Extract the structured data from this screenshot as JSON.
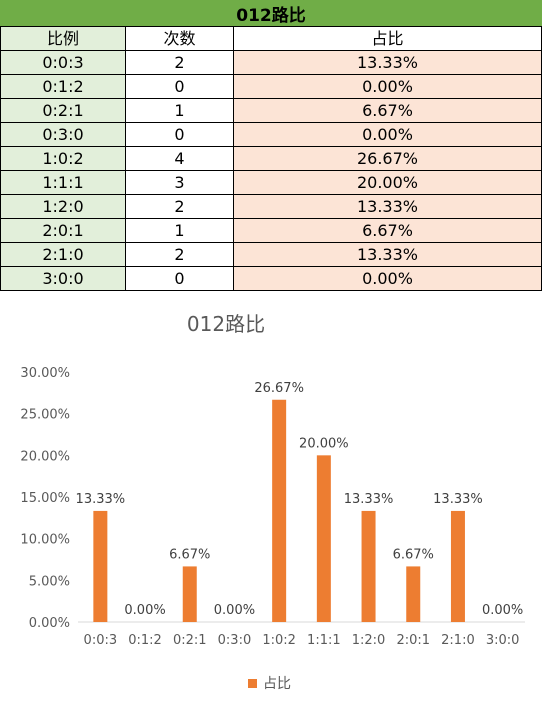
{
  "table": {
    "title": "012路比",
    "headers": [
      "比例",
      "次数",
      "占比"
    ],
    "rows": [
      [
        "0:0:3",
        "2",
        "13.33%"
      ],
      [
        "0:1:2",
        "0",
        "0.00%"
      ],
      [
        "0:2:1",
        "1",
        "6.67%"
      ],
      [
        "0:3:0",
        "0",
        "0.00%"
      ],
      [
        "1:0:2",
        "4",
        "26.67%"
      ],
      [
        "1:1:1",
        "3",
        "20.00%"
      ],
      [
        "1:2:0",
        "2",
        "13.33%"
      ],
      [
        "2:0:1",
        "1",
        "6.67%"
      ],
      [
        "2:1:0",
        "2",
        "13.33%"
      ],
      [
        "3:0:0",
        "0",
        "0.00%"
      ]
    ]
  },
  "chart_data": {
    "type": "bar",
    "title": "012路比",
    "categories": [
      "0:0:3",
      "0:1:2",
      "0:2:1",
      "0:3:0",
      "1:0:2",
      "1:1:1",
      "1:2:0",
      "2:0:1",
      "2:1:0",
      "3:0:0"
    ],
    "series": [
      {
        "name": "占比",
        "values": [
          13.33,
          0.0,
          6.67,
          0.0,
          26.67,
          20.0,
          13.33,
          6.67,
          13.33,
          0.0
        ],
        "labels": [
          "13.33%",
          "0.00%",
          "6.67%",
          "0.00%",
          "26.67%",
          "20.00%",
          "13.33%",
          "6.67%",
          "13.33%",
          "0.00%"
        ],
        "color": "#ed7d31"
      }
    ],
    "yticks": [
      "0.00%",
      "5.00%",
      "10.00%",
      "15.00%",
      "20.00%",
      "25.00%",
      "30.00%"
    ],
    "ylim": [
      0,
      30
    ],
    "grid": false,
    "legend_position": "bottom"
  }
}
